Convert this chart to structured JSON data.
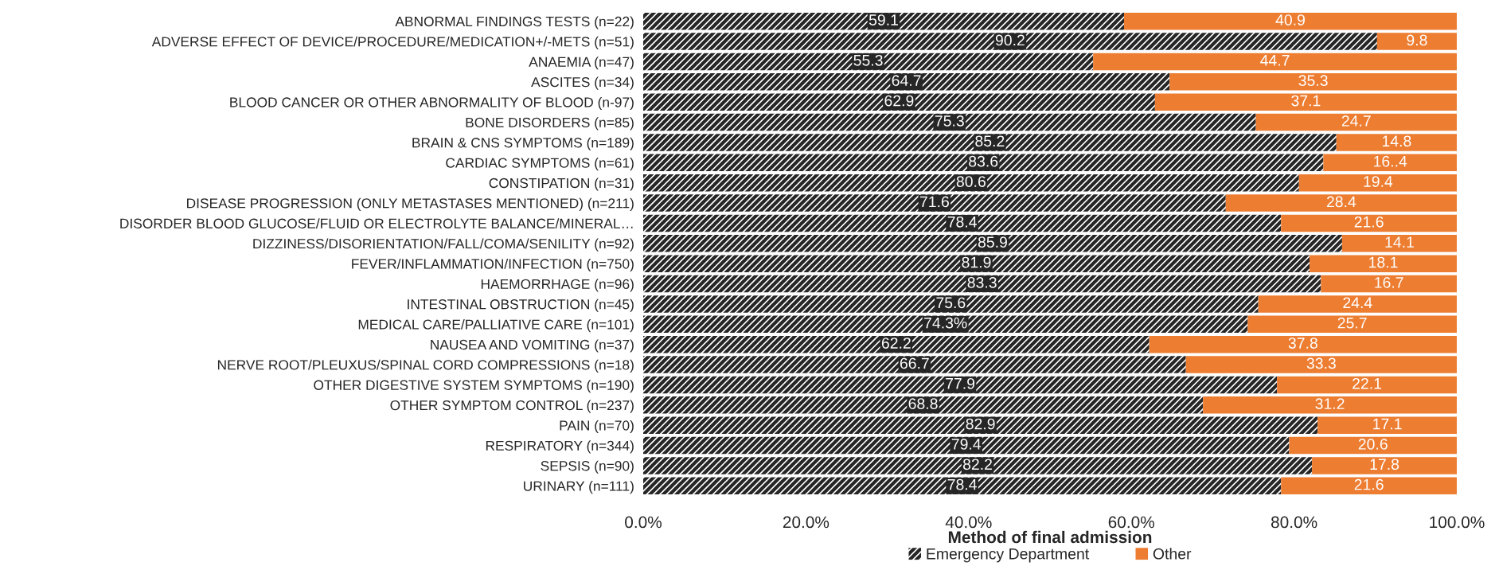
{
  "chart_data": {
    "type": "bar",
    "orientation": "horizontal",
    "stacked": true,
    "categories": [
      "ABNORMAL FINDINGS TESTS (n=22)",
      "ADVERSE EFFECT OF DEVICE/PROCEDURE/MEDICATION+/-METS (n=51)",
      "ANAEMIA (n=47)",
      "ASCITES (n=34)",
      "BLOOD CANCER OR OTHER ABNORMALITY OF BLOOD (n-97)",
      "BONE DISORDERS (n=85)",
      "BRAIN & CNS SYMPTOMS (n=189)",
      "CARDIAC SYMPTOMS (n=61)",
      "CONSTIPATION (n=31)",
      "DISEASE PROGRESSION (ONLY METASTASES MENTIONED) (n=211)",
      "DISORDER BLOOD GLUCOSE/FLUID OR ELECTROLYTE BALANCE/MINERAL…",
      "DIZZINESS/DISORIENTATION/FALL/COMA/SENILITY (n=92)",
      "FEVER/INFLAMMATION/INFECTION (n=750)",
      "HAEMORRHAGE (n=96)",
      "INTESTINAL OBSTRUCTION (n=45)",
      "MEDICAL CARE/PALLIATIVE CARE (n=101)",
      "NAUSEA AND VOMITING (n=37)",
      "NERVE ROOT/PLEUXUS/SPINAL CORD COMPRESSIONS (n=18)",
      "OTHER DIGESTIVE SYSTEM SYMPTOMS (n=190)",
      "OTHER SYMPTOM CONTROL (n=237)",
      "PAIN (n=70)",
      "RESPIRATORY (n=344)",
      "SEPSIS (n=90)",
      "URINARY (n=111)"
    ],
    "series": [
      {
        "name": "Emergency Department",
        "color": "#262626",
        "values": [
          59.1,
          90.2,
          55.3,
          64.7,
          62.9,
          75.3,
          85.2,
          83.6,
          80.6,
          71.6,
          78.4,
          85.9,
          81.9,
          83.3,
          75.6,
          74.3,
          62.2,
          66.7,
          77.9,
          68.8,
          82.9,
          79.4,
          82.2,
          78.4
        ],
        "value_labels": [
          "59.1",
          "90.2",
          "55.3",
          "64.7",
          "62.9",
          "75.3",
          "85.2",
          "83.6",
          "80.6",
          "71.6",
          "78.4",
          "85.9",
          "81.9",
          "83.3",
          "75.6",
          "74.3%",
          "62.2",
          "66.7",
          "77.9",
          "68.8",
          "82.9",
          "79.4",
          "82.2",
          "78.4"
        ]
      },
      {
        "name": "Other",
        "color": "#ed7d31",
        "values": [
          40.9,
          9.8,
          44.7,
          35.3,
          37.1,
          24.7,
          14.8,
          16.4,
          19.4,
          28.4,
          21.6,
          14.1,
          18.1,
          16.7,
          24.4,
          25.7,
          37.8,
          33.3,
          22.1,
          31.2,
          17.1,
          20.6,
          17.8,
          21.6
        ],
        "value_labels": [
          "40.9",
          "9.8",
          "44.7",
          "35.3",
          "37.1",
          "24.7",
          "14.8",
          "16..4",
          "19.4",
          "28.4",
          "21.6",
          "14.1",
          "18.1",
          "16.7",
          "24.4",
          "25.7",
          "37.8",
          "33.3",
          "22.1",
          "31.2",
          "17.1",
          "20.6",
          "17.8",
          "21.6"
        ]
      }
    ],
    "xlim": [
      0,
      100
    ],
    "xticks": [
      {
        "value": 0,
        "label": "0.0%"
      },
      {
        "value": 20,
        "label": "20.0%"
      },
      {
        "value": 40,
        "label": "40.0%"
      },
      {
        "value": 60,
        "label": "60.0%"
      },
      {
        "value": 80,
        "label": "80.0%"
      },
      {
        "value": 100,
        "label": "100.0%"
      }
    ],
    "legend_title": "Method of final admission",
    "legend": "bottom",
    "grid": false
  }
}
